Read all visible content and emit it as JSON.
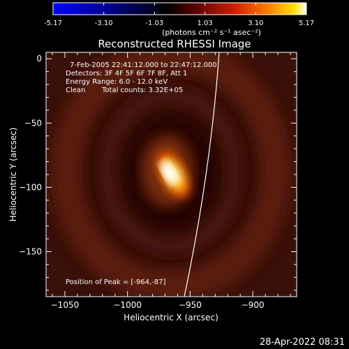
{
  "colorbar": {
    "tick_labels": [
      "-5.17",
      "-3.10",
      "-1.03",
      "1.03",
      "3.10",
      "5.17"
    ],
    "tick_values": [
      -5.17,
      -3.1,
      -1.03,
      1.03,
      3.1,
      5.17
    ],
    "range": [
      -5.17,
      5.17
    ],
    "unit_label": "(photons cm⁻² s⁻¹ asec⁻²)",
    "colors": [
      "#0000ff",
      "#000000",
      "#b00000",
      "#ff5000",
      "#ffc800",
      "#ffffff"
    ]
  },
  "title": "Reconstructed RHESSI Image",
  "info": {
    "time_range": "7-Feb-2005 22:41:12.000 to 22:47:12.000",
    "detectors": "Detectors: 3F 4F 5F 6F 7F 8F, Att 1",
    "energy": "Energy Range: 6.0 - 12.0 keV",
    "clean_label": "Clean",
    "counts": "Total counts: 3.32E+05",
    "peak": "Position of Peak = [-964,-87]"
  },
  "axes": {
    "x": {
      "label": "Heliocentric X (arcsec)",
      "range": [
        -1065,
        -865
      ],
      "ticks": [
        -1050,
        -1000,
        -950,
        -900
      ],
      "tick_labels": [
        "−1050",
        "−1000",
        "−950",
        "−900"
      ]
    },
    "y": {
      "label": "Heliocentric Y (arcsec)",
      "range": [
        -185,
        5
      ],
      "ticks": [
        0,
        -50,
        -100,
        -150
      ],
      "tick_labels": [
        "0",
        "−50",
        "−100",
        "−150"
      ]
    }
  },
  "image": {
    "source_peak": [
      -964,
      -87
    ],
    "limb_colors": [
      "#4a140a",
      "#2a0805",
      "#7a2e10",
      "#ffffff",
      "#ffee44",
      "#ff8a00",
      "#d03a00"
    ]
  },
  "timestamp": "28-Apr-2022 08:31"
}
